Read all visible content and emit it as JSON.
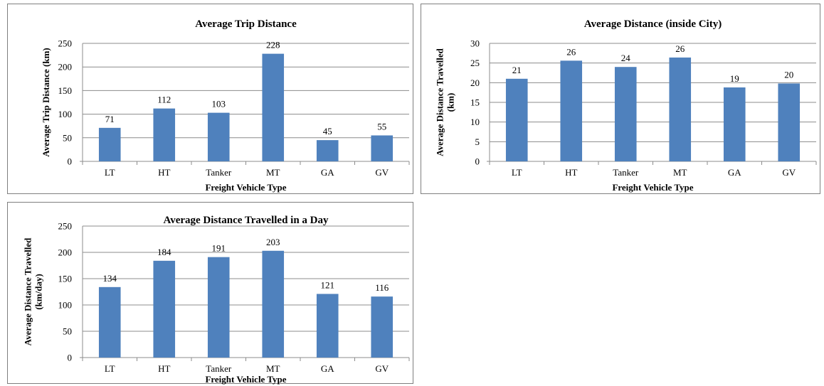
{
  "chart_data": [
    {
      "type": "bar",
      "title": "Average Trip Distance",
      "xlabel": "Freight Vehicle Type",
      "ylabel": [
        "Average Trip Distance (km)"
      ],
      "categories": [
        "LT",
        "HT",
        "Tanker",
        "MT",
        "GA",
        "GV"
      ],
      "values": [
        71,
        112,
        103,
        228,
        45,
        55
      ],
      "ylim": [
        0,
        250
      ],
      "yticks": [
        0,
        50,
        100,
        150,
        200,
        250
      ],
      "grid": true,
      "bar_color": "#4f81bd"
    },
    {
      "type": "bar",
      "title": "Average Distance (inside City)",
      "xlabel": "Freight Vehicle Type",
      "ylabel": [
        "Average Distance Travelled",
        "(km)"
      ],
      "categories": [
        "LT",
        "HT",
        "Tanker",
        "MT",
        "GA",
        "GV"
      ],
      "values": [
        21,
        25.6,
        24,
        26.4,
        18.8,
        19.8
      ],
      "data_labels": [
        "21",
        "26",
        "24",
        "26",
        "19",
        "20"
      ],
      "ylim": [
        0,
        30
      ],
      "yticks": [
        0,
        5,
        10,
        15,
        20,
        25,
        30
      ],
      "grid": true,
      "bar_color": "#4f81bd"
    },
    {
      "type": "bar",
      "title": "Average Distance Travelled in a Day",
      "xlabel": "Freight Vehicle Type",
      "ylabel": [
        "Average Distance Travelled",
        "(km/day)"
      ],
      "categories": [
        "LT",
        "HT",
        "Tanker",
        "MT",
        "GA",
        "GV"
      ],
      "values": [
        134,
        184,
        191,
        203,
        121,
        116
      ],
      "ylim": [
        0,
        250
      ],
      "yticks": [
        0,
        50,
        100,
        150,
        200,
        250
      ],
      "grid": true,
      "bar_color": "#4f81bd"
    }
  ]
}
